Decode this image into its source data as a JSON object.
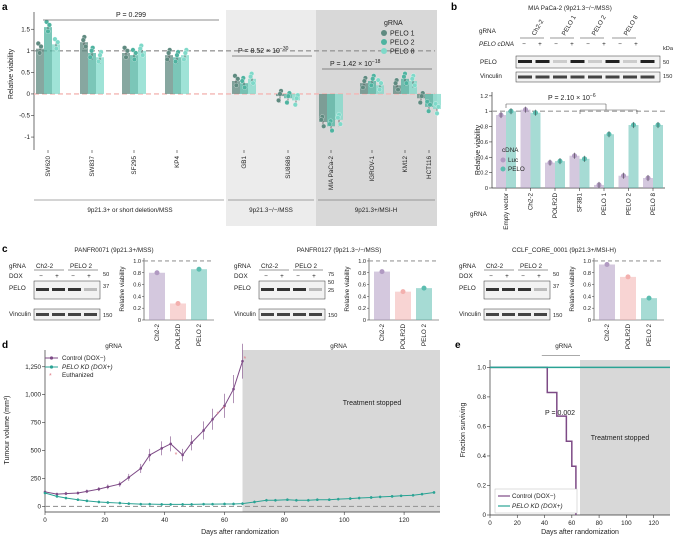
{
  "colors": {
    "pelo1": "#5f8a80",
    "pelo2": "#4fb3a0",
    "pelo8": "#7fd9c9",
    "ch22": "#b19ac2",
    "polr2d": "#f3b0ae",
    "pelo": "#5cbdb0",
    "dot": "#3a9a8a",
    "control": "#7d4a86",
    "kd": "#2aa394",
    "shade": "#d8d8d8",
    "shade2": "#ececec",
    "dash": "#999999",
    "reddash": "#f4b6b4"
  },
  "panel_a": {
    "letter": "a",
    "ylabel": "Relative viability",
    "legend_title": "gRNA",
    "legend": [
      "PELO 1",
      "PELO 2",
      "PELO 8"
    ],
    "p_values": [
      "P = 0.299",
      "P = 8.52 × 10",
      "P = 1.42 × 10"
    ],
    "p_exponents": [
      "",
      "−30",
      "−18"
    ],
    "groups": [
      "9p21.3+ or short deletion/MSS",
      "9p21.3−/−/MSS",
      "9p21.3+/MSI-H"
    ],
    "chart_data": {
      "type": "bar",
      "title": "",
      "ylabel": "Relative viability",
      "ylim": [
        -1.3,
        1.9
      ],
      "yticks": [
        -1.0,
        -0.5,
        0,
        0.5,
        1.0,
        1.5
      ],
      "categories": [
        "SW620",
        "SW837",
        "SF295",
        "KP4",
        "GB1",
        "SU8686",
        "MIA PaCa-2",
        "IGROV-1",
        "KM12",
        "HCT116"
      ],
      "series": [
        {
          "name": "PELO 1",
          "values": [
            1.05,
            1.2,
            0.95,
            0.9,
            0.3,
            -0.05,
            -0.65,
            0.25,
            0.2,
            -0.1
          ]
        },
        {
          "name": "PELO 2",
          "values": [
            1.55,
            0.95,
            0.9,
            0.85,
            0.25,
            -0.1,
            -0.75,
            0.3,
            0.35,
            -0.3
          ]
        },
        {
          "name": "PELO 8",
          "values": [
            1.15,
            0.85,
            1.0,
            0.9,
            0.35,
            -0.15,
            -0.6,
            0.2,
            0.3,
            -0.35
          ]
        }
      ]
    }
  },
  "panel_b": {
    "letter": "b",
    "title": "MIA PaCa-2 (9p21.3−/−/MSS)",
    "blot_gRNA_label": "gRNA",
    "blot_cdna_label": "PELO cDNA",
    "blot_lanes": [
      "Ch2-2",
      "PELO 1",
      "PELO 2",
      "PELO 8"
    ],
    "blot_signs": [
      "−",
      "+",
      "−",
      "+",
      "−",
      "+",
      "−",
      "+"
    ],
    "blot_rows": [
      "PELO",
      "Vinculin"
    ],
    "kda_label": "kDa",
    "kda": [
      "50",
      "150"
    ],
    "p_value": "P = 2.10 × 10",
    "p_exponent": "−6",
    "legend_title": "cDNA",
    "legend": [
      "Luc",
      "PELO"
    ],
    "gRNA_axis": "gRNA",
    "chart_data": {
      "type": "bar",
      "ylabel": "Relative viability",
      "ylim": [
        0,
        1.25
      ],
      "yticks": [
        0,
        0.2,
        0.4,
        0.6,
        0.8,
        1.0,
        1.2
      ],
      "categories": [
        "Empty vector",
        "Ch2-2",
        "POLR2D",
        "SF3B1",
        "PELO 1",
        "PELO 2",
        "PELO 8"
      ],
      "series": [
        {
          "name": "Luc",
          "values": [
            0.95,
            1.02,
            0.33,
            0.42,
            0.04,
            0.16,
            0.13
          ]
        },
        {
          "name": "PELO",
          "values": [
            1.0,
            0.98,
            0.35,
            0.38,
            0.7,
            0.82,
            0.82
          ]
        }
      ]
    }
  },
  "panel_c": {
    "letter": "c",
    "sub": [
      {
        "title": "PANFR0071 (9p21.3+/MSS)",
        "lanes": [
          "Ch2-2",
          "PELO 2"
        ],
        "kda": [
          "50",
          "37",
          "150"
        ],
        "rows": [
          "PELO",
          "Vinculin"
        ],
        "chart_data": {
          "type": "bar",
          "ylabel": "Relative viability",
          "ylim": [
            0,
            1.05
          ],
          "categories": [
            "Ch2-2",
            "POLR2D",
            "PELO 2"
          ],
          "values": [
            0.8,
            0.28,
            0.86
          ]
        }
      },
      {
        "title": "PANFR0127 (9p21.3−/−/MSS)",
        "lanes": [
          "Ch2-2",
          "PELO 2"
        ],
        "kda": [
          "75",
          "50",
          "25",
          "150"
        ],
        "rows": [
          "PELO",
          "Vinculin"
        ],
        "chart_data": {
          "type": "bar",
          "ylabel": "Relative viability",
          "ylim": [
            0,
            1.05
          ],
          "categories": [
            "Ch2-2",
            "POLR2D",
            "PELO 2"
          ],
          "values": [
            0.82,
            0.48,
            0.54
          ]
        }
      },
      {
        "title": "CCLF_CORE_0001 (9p21.3+/MSI-H)",
        "lanes": [
          "Ch2-2",
          "PELO 2"
        ],
        "kda": [
          "50",
          "37",
          "150"
        ],
        "rows": [
          "PELO",
          "Vinculin"
        ],
        "chart_data": {
          "type": "bar",
          "ylabel": "Relative viability",
          "ylim": [
            0,
            1.05
          ],
          "categories": [
            "Ch2-2",
            "POLR2D",
            "PELO 2"
          ],
          "values": [
            0.94,
            0.73,
            0.37
          ]
        }
      }
    ],
    "gRNA_label": "gRNA",
    "dox_label": "DOX",
    "signs": [
      "−",
      "+",
      "−",
      "+"
    ],
    "yticks": [
      "0",
      "0.2",
      "0.4",
      "0.6",
      "0.8",
      "1.0"
    ]
  },
  "panel_d": {
    "letter": "d",
    "legend": [
      "Control (DOX−)",
      "PELO KD (DOX+)",
      "Euthanized"
    ],
    "shade_label": "Treatment stopped",
    "chart_data": {
      "type": "line",
      "xlabel": "Days after randomization",
      "ylabel": "Tumour volume (mm³)",
      "xlim": [
        0,
        132
      ],
      "ylim": [
        -50,
        1400
      ],
      "xticks": [
        0,
        20,
        40,
        60,
        80,
        100,
        120
      ],
      "yticks": [
        0,
        250,
        500,
        750,
        1000,
        1250
      ],
      "yticklabels": [
        "0",
        "250",
        "500",
        "750",
        "1,000",
        "1,250"
      ],
      "treatment_stop_day": 66,
      "series": [
        {
          "name": "Control (DOX−)",
          "x": [
            0,
            4,
            7,
            11,
            14,
            18,
            21,
            25,
            28,
            32,
            35,
            39,
            42,
            46,
            49,
            53,
            56,
            60,
            63,
            66
          ],
          "y": [
            130,
            110,
            115,
            120,
            135,
            155,
            175,
            200,
            260,
            340,
            460,
            520,
            560,
            460,
            570,
            680,
            780,
            900,
            1050,
            1300
          ]
        },
        {
          "name": "PELO KD (DOX+)",
          "x": [
            0,
            4,
            7,
            11,
            14,
            18,
            21,
            25,
            28,
            32,
            35,
            39,
            42,
            46,
            49,
            53,
            56,
            60,
            63,
            66,
            70,
            74,
            77,
            81,
            84,
            88,
            91,
            95,
            98,
            102,
            105,
            109,
            112,
            116,
            119,
            123,
            126,
            130
          ],
          "y": [
            120,
            90,
            75,
            60,
            50,
            40,
            35,
            30,
            25,
            20,
            20,
            18,
            18,
            18,
            18,
            20,
            20,
            22,
            22,
            25,
            40,
            55,
            55,
            60,
            55,
            55,
            60,
            60,
            65,
            70,
            75,
            80,
            85,
            90,
            95,
            100,
            110,
            125
          ]
        }
      ],
      "euthanized": [
        {
          "x": 44,
          "y": 470
        },
        {
          "x": 58,
          "y": 830
        },
        {
          "x": 60,
          "y": 880
        },
        {
          "x": 67,
          "y": 1330
        }
      ]
    }
  },
  "panel_e": {
    "letter": "e",
    "p_value": "P = 0.002",
    "legend": [
      "Control (DOX−)",
      "PELO KD (DOX+)"
    ],
    "shade_label": "Treatment stopped",
    "chart_data": {
      "type": "line",
      "xlabel": "Days after randomization",
      "ylabel": "Fraction surviving",
      "xlim": [
        0,
        132
      ],
      "ylim": [
        0,
        1.05
      ],
      "xticks": [
        0,
        20,
        40,
        60,
        80,
        100,
        120
      ],
      "yticks": [
        0,
        0.2,
        0.4,
        0.6,
        0.8,
        1.0
      ],
      "yticklabels": [
        "0",
        "0.2",
        "0.4",
        "0.6",
        "0.8",
        "1.0"
      ],
      "treatment_stop_day": 66,
      "series": [
        {
          "name": "Control (DOX−)",
          "x": [
            0,
            42,
            42,
            49,
            49,
            56,
            56,
            60,
            60,
            63,
            63
          ],
          "y": [
            1.0,
            1.0,
            0.83,
            0.83,
            0.67,
            0.67,
            0.5,
            0.5,
            0.33,
            0.33,
            0.0
          ]
        },
        {
          "name": "PELO KD (DOX+)",
          "x": [
            0,
            132
          ],
          "y": [
            1.0,
            1.0
          ]
        }
      ]
    }
  }
}
